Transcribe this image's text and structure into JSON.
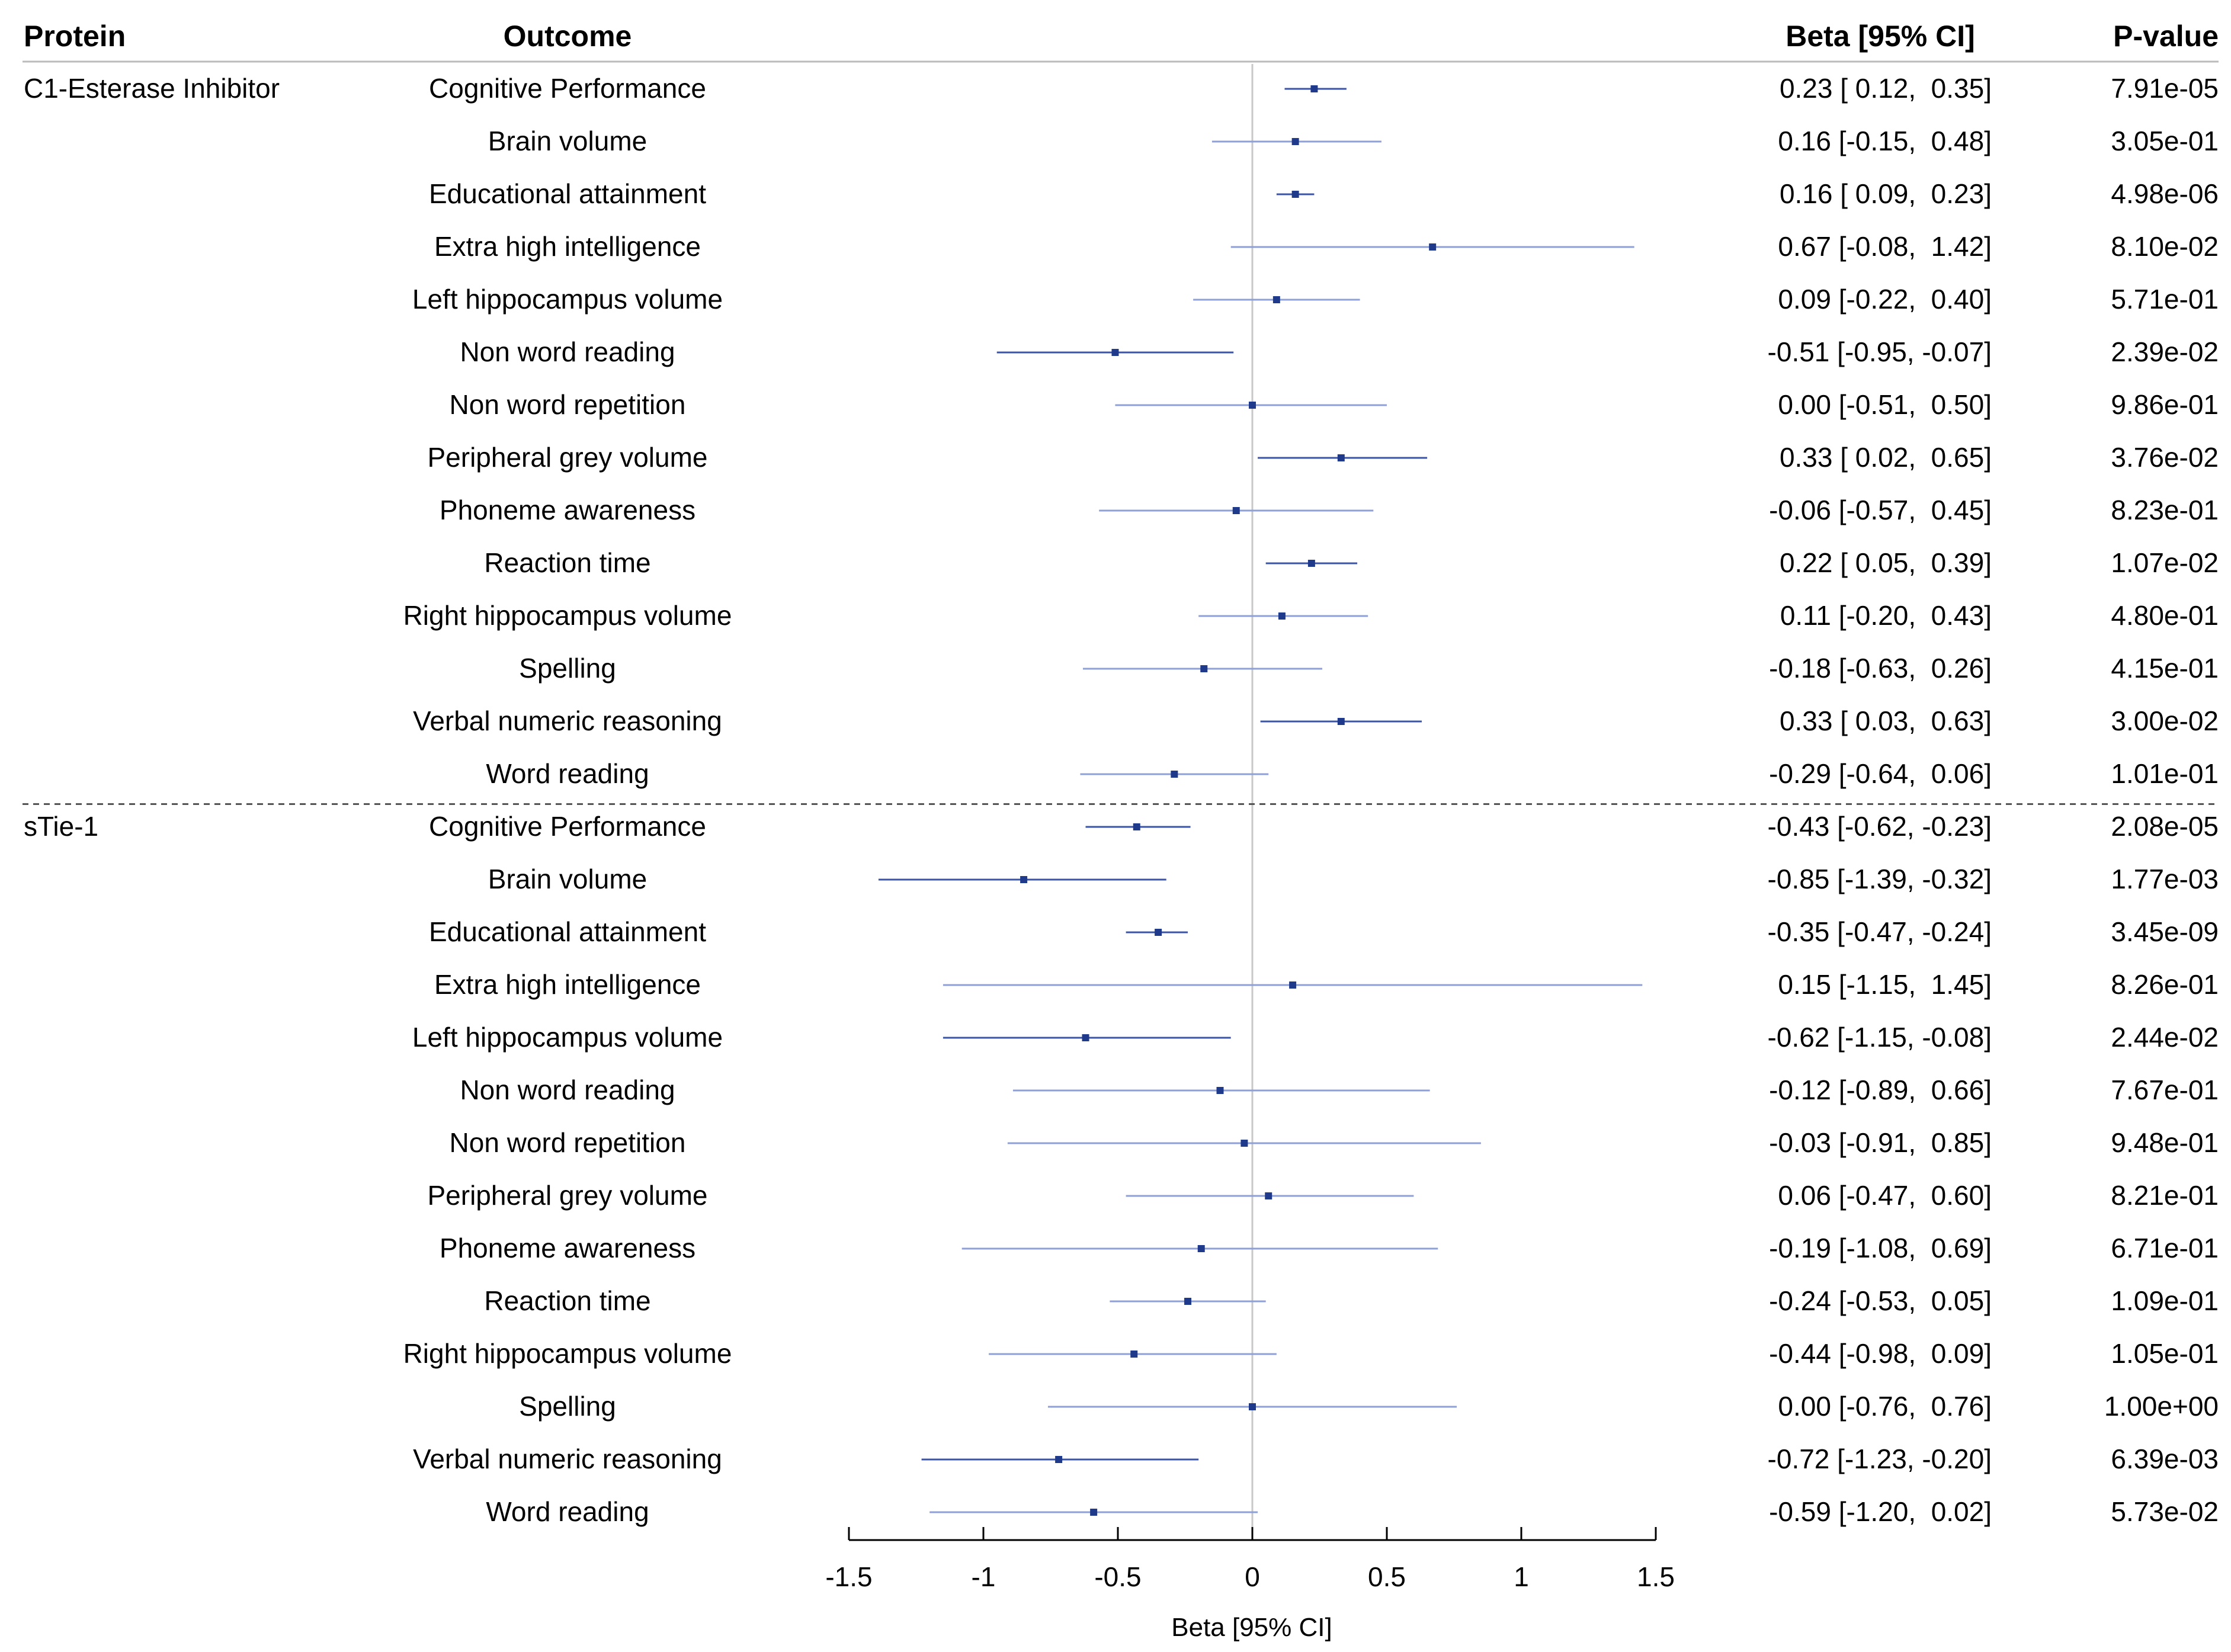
{
  "chart_data": {
    "type": "forest",
    "headers": {
      "protein": "Protein",
      "outcome": "Outcome",
      "beta": "Beta [95% CI]",
      "pvalue": "P-value"
    },
    "xlabel": "Beta [95% CI]",
    "xlim": [
      -1.5,
      1.5
    ],
    "xticks": [
      -1.5,
      -1,
      -0.5,
      0,
      0.5,
      1,
      1.5
    ],
    "xtick_labels": [
      "-1.5",
      "-1",
      "-0.5",
      "0",
      "0.5",
      "1",
      "1.5"
    ],
    "reference_line": 0,
    "colors": {
      "point": "#1f3a8a",
      "ci_significant": "#3b54a6",
      "ci_nonsignificant": "#8ea0d6",
      "reference": "#c8c8c8",
      "rule": "#bbbbbb",
      "separator": "#555555"
    },
    "groups": [
      {
        "protein": "C1-Esterase Inhibitor",
        "rows": [
          {
            "outcome": "Cognitive Performance",
            "beta": 0.23,
            "lo": 0.12,
            "hi": 0.35,
            "ci_text": "0.23 [ 0.12,  0.35]",
            "p_text": "7.91e-05",
            "p": 7.91e-05
          },
          {
            "outcome": "Brain volume",
            "beta": 0.16,
            "lo": -0.15,
            "hi": 0.48,
            "ci_text": "0.16 [-0.15,  0.48]",
            "p_text": "3.05e-01",
            "p": 0.305
          },
          {
            "outcome": "Educational attainment",
            "beta": 0.16,
            "lo": 0.09,
            "hi": 0.23,
            "ci_text": "0.16 [ 0.09,  0.23]",
            "p_text": "4.98e-06",
            "p": 4.98e-06
          },
          {
            "outcome": "Extra high intelligence",
            "beta": 0.67,
            "lo": -0.08,
            "hi": 1.42,
            "ci_text": "0.67 [-0.08,  1.42]",
            "p_text": "8.10e-02",
            "p": 0.081
          },
          {
            "outcome": "Left hippocampus volume",
            "beta": 0.09,
            "lo": -0.22,
            "hi": 0.4,
            "ci_text": "0.09 [-0.22,  0.40]",
            "p_text": "5.71e-01",
            "p": 0.571
          },
          {
            "outcome": "Non word reading",
            "beta": -0.51,
            "lo": -0.95,
            "hi": -0.07,
            "ci_text": "-0.51 [-0.95, -0.07]",
            "p_text": "2.39e-02",
            "p": 0.0239
          },
          {
            "outcome": "Non word repetition",
            "beta": 0.0,
            "lo": -0.51,
            "hi": 0.5,
            "ci_text": "0.00 [-0.51,  0.50]",
            "p_text": "9.86e-01",
            "p": 0.986
          },
          {
            "outcome": "Peripheral grey volume",
            "beta": 0.33,
            "lo": 0.02,
            "hi": 0.65,
            "ci_text": "0.33 [ 0.02,  0.65]",
            "p_text": "3.76e-02",
            "p": 0.0376
          },
          {
            "outcome": "Phoneme awareness",
            "beta": -0.06,
            "lo": -0.57,
            "hi": 0.45,
            "ci_text": "-0.06 [-0.57,  0.45]",
            "p_text": "8.23e-01",
            "p": 0.823
          },
          {
            "outcome": "Reaction time",
            "beta": 0.22,
            "lo": 0.05,
            "hi": 0.39,
            "ci_text": "0.22 [ 0.05,  0.39]",
            "p_text": "1.07e-02",
            "p": 0.0107
          },
          {
            "outcome": "Right hippocampus volume",
            "beta": 0.11,
            "lo": -0.2,
            "hi": 0.43,
            "ci_text": "0.11 [-0.20,  0.43]",
            "p_text": "4.80e-01",
            "p": 0.48
          },
          {
            "outcome": "Spelling",
            "beta": -0.18,
            "lo": -0.63,
            "hi": 0.26,
            "ci_text": "-0.18 [-0.63,  0.26]",
            "p_text": "4.15e-01",
            "p": 0.415
          },
          {
            "outcome": "Verbal numeric reasoning",
            "beta": 0.33,
            "lo": 0.03,
            "hi": 0.63,
            "ci_text": "0.33 [ 0.03,  0.63]",
            "p_text": "3.00e-02",
            "p": 0.03
          },
          {
            "outcome": "Word reading",
            "beta": -0.29,
            "lo": -0.64,
            "hi": 0.06,
            "ci_text": "-0.29 [-0.64,  0.06]",
            "p_text": "1.01e-01",
            "p": 0.101
          }
        ]
      },
      {
        "protein": "sTie-1",
        "rows": [
          {
            "outcome": "Cognitive Performance",
            "beta": -0.43,
            "lo": -0.62,
            "hi": -0.23,
            "ci_text": "-0.43 [-0.62, -0.23]",
            "p_text": "2.08e-05",
            "p": 2.08e-05
          },
          {
            "outcome": "Brain volume",
            "beta": -0.85,
            "lo": -1.39,
            "hi": -0.32,
            "ci_text": "-0.85 [-1.39, -0.32]",
            "p_text": "1.77e-03",
            "p": 0.00177
          },
          {
            "outcome": "Educational attainment",
            "beta": -0.35,
            "lo": -0.47,
            "hi": -0.24,
            "ci_text": "-0.35 [-0.47, -0.24]",
            "p_text": "3.45e-09",
            "p": 3.45e-09
          },
          {
            "outcome": "Extra high intelligence",
            "beta": 0.15,
            "lo": -1.15,
            "hi": 1.45,
            "ci_text": "0.15 [-1.15,  1.45]",
            "p_text": "8.26e-01",
            "p": 0.826
          },
          {
            "outcome": "Left hippocampus volume",
            "beta": -0.62,
            "lo": -1.15,
            "hi": -0.08,
            "ci_text": "-0.62 [-1.15, -0.08]",
            "p_text": "2.44e-02",
            "p": 0.0244
          },
          {
            "outcome": "Non word reading",
            "beta": -0.12,
            "lo": -0.89,
            "hi": 0.66,
            "ci_text": "-0.12 [-0.89,  0.66]",
            "p_text": "7.67e-01",
            "p": 0.767
          },
          {
            "outcome": "Non word repetition",
            "beta": -0.03,
            "lo": -0.91,
            "hi": 0.85,
            "ci_text": "-0.03 [-0.91,  0.85]",
            "p_text": "9.48e-01",
            "p": 0.948
          },
          {
            "outcome": "Peripheral grey volume",
            "beta": 0.06,
            "lo": -0.47,
            "hi": 0.6,
            "ci_text": "0.06 [-0.47,  0.60]",
            "p_text": "8.21e-01",
            "p": 0.821
          },
          {
            "outcome": "Phoneme awareness",
            "beta": -0.19,
            "lo": -1.08,
            "hi": 0.69,
            "ci_text": "-0.19 [-1.08,  0.69]",
            "p_text": "6.71e-01",
            "p": 0.671
          },
          {
            "outcome": "Reaction time",
            "beta": -0.24,
            "lo": -0.53,
            "hi": 0.05,
            "ci_text": "-0.24 [-0.53,  0.05]",
            "p_text": "1.09e-01",
            "p": 0.109
          },
          {
            "outcome": "Right hippocampus volume",
            "beta": -0.44,
            "lo": -0.98,
            "hi": 0.09,
            "ci_text": "-0.44 [-0.98,  0.09]",
            "p_text": "1.05e-01",
            "p": 0.105
          },
          {
            "outcome": "Spelling",
            "beta": 0.0,
            "lo": -0.76,
            "hi": 0.76,
            "ci_text": "0.00 [-0.76,  0.76]",
            "p_text": "1.00e+00",
            "p": 1.0
          },
          {
            "outcome": "Verbal numeric reasoning",
            "beta": -0.72,
            "lo": -1.23,
            "hi": -0.2,
            "ci_text": "-0.72 [-1.23, -0.20]",
            "p_text": "6.39e-03",
            "p": 0.00639
          },
          {
            "outcome": "Word reading",
            "beta": -0.59,
            "lo": -1.2,
            "hi": 0.02,
            "ci_text": "-0.59 [-1.20,  0.02]",
            "p_text": "5.73e-02",
            "p": 0.0573
          }
        ]
      }
    ]
  }
}
